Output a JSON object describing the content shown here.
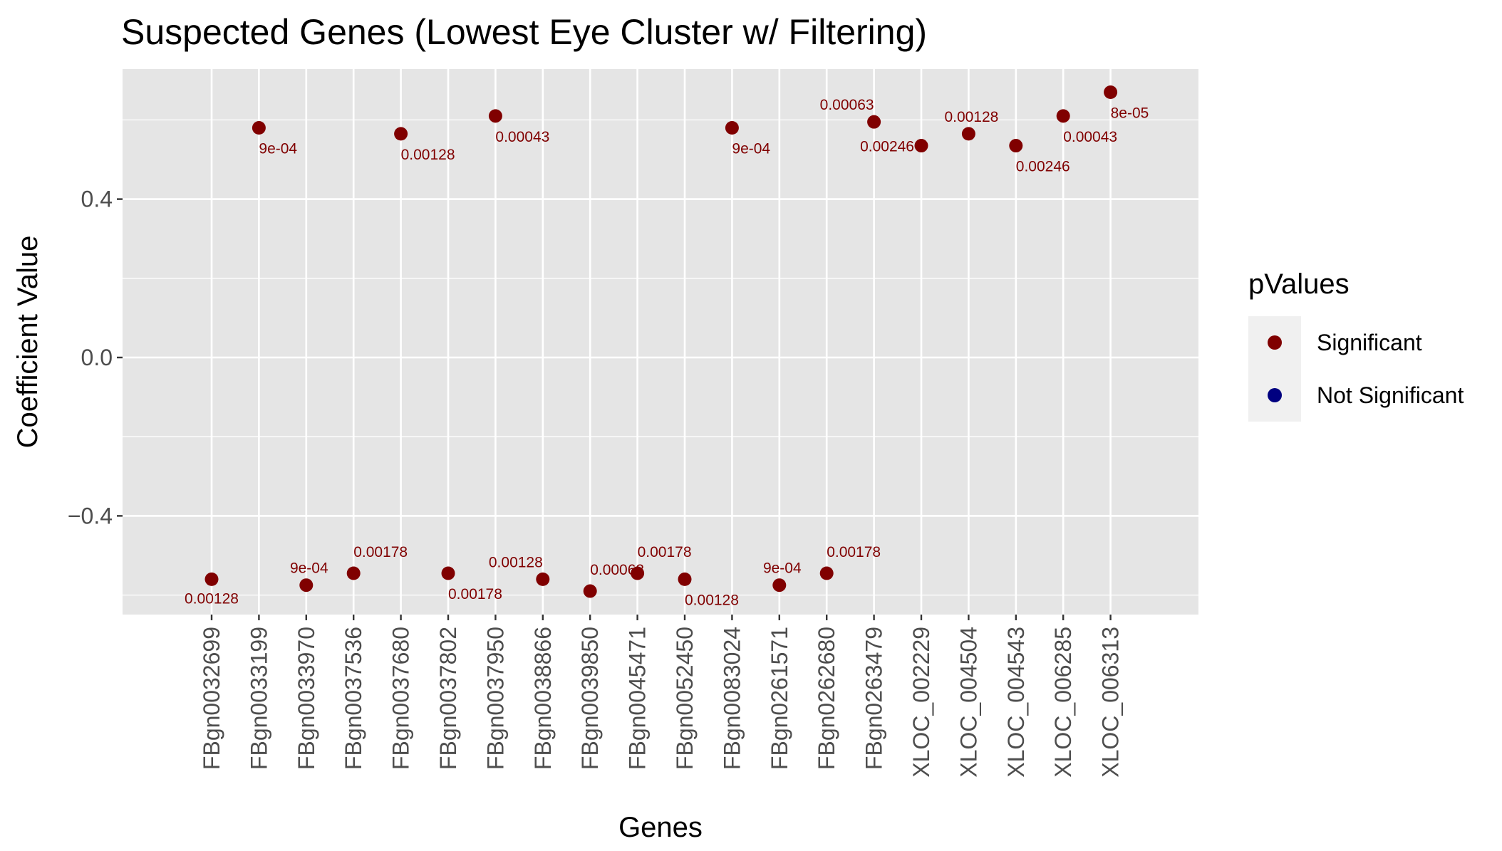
{
  "chart_data": {
    "type": "scatter",
    "title": "Suspected Genes (Lowest Eye Cluster w/ Filtering)",
    "xlabel": "Genes",
    "ylabel": "Coefficient Value",
    "ylim": [
      -0.65,
      0.72
    ],
    "yticks": [
      {
        "value": -0.4,
        "label": "−0.4"
      },
      {
        "value": 0.0,
        "label": "0.0"
      },
      {
        "value": 0.4,
        "label": "0.4"
      }
    ],
    "grid": true,
    "legend_position": "right",
    "legend": {
      "title": "pValues",
      "entries": [
        {
          "label": "Significant",
          "color": "#800000"
        },
        {
          "label": "Not Significant",
          "color": "#000080"
        }
      ]
    },
    "categories": [
      "FBgn0032699",
      "FBgn0033199",
      "FBgn0033970",
      "FBgn0037536",
      "FBgn0037680",
      "FBgn0037802",
      "FBgn0037950",
      "FBgn0038866",
      "FBgn0039850",
      "FBgn0045471",
      "FBgn0052450",
      "FBgn0083024",
      "FBgn0261571",
      "FBgn0262680",
      "FBgn0263479",
      "XLOC_002229",
      "XLOC_004504",
      "XLOC_004543",
      "XLOC_006285",
      "XLOC_006313"
    ],
    "points": [
      {
        "category": "FBgn0032699",
        "y": -0.56,
        "pvalue": "0.00128",
        "group": "Significant",
        "label_pos": "below"
      },
      {
        "category": "FBgn0033199",
        "y": 0.58,
        "pvalue": "9e-04",
        "group": "Significant",
        "label_pos": "below-right"
      },
      {
        "category": "FBgn0033970",
        "y": -0.575,
        "pvalue": "9e-04",
        "group": "Significant",
        "label_pos": "above"
      },
      {
        "category": "FBgn0037536",
        "y": -0.545,
        "pvalue": "0.00178",
        "group": "Significant",
        "label_pos": "above-right"
      },
      {
        "category": "FBgn0037680",
        "y": 0.565,
        "pvalue": "0.00128",
        "group": "Significant",
        "label_pos": "below-right"
      },
      {
        "category": "FBgn0037802",
        "y": -0.545,
        "pvalue": "0.00178",
        "group": "Significant",
        "label_pos": "below-right"
      },
      {
        "category": "FBgn0037950",
        "y": 0.61,
        "pvalue": "0.00043",
        "group": "Significant",
        "label_pos": "below-right"
      },
      {
        "category": "FBgn0038866",
        "y": -0.56,
        "pvalue": "0.00128",
        "group": "Significant",
        "label_pos": "above-left"
      },
      {
        "category": "FBgn0039850",
        "y": -0.59,
        "pvalue": "0.00063",
        "group": "Significant",
        "label_pos": "above-right"
      },
      {
        "category": "FBgn0045471",
        "y": -0.545,
        "pvalue": "0.00178",
        "group": "Significant",
        "label_pos": "above-right"
      },
      {
        "category": "FBgn0052450",
        "y": -0.56,
        "pvalue": "0.00128",
        "group": "Significant",
        "label_pos": "below-right"
      },
      {
        "category": "FBgn0083024",
        "y": 0.58,
        "pvalue": "9e-04",
        "group": "Significant",
        "label_pos": "below-right"
      },
      {
        "category": "FBgn0261571",
        "y": -0.575,
        "pvalue": "9e-04",
        "group": "Significant",
        "label_pos": "above"
      },
      {
        "category": "FBgn0262680",
        "y": -0.545,
        "pvalue": "0.00178",
        "group": "Significant",
        "label_pos": "above-right"
      },
      {
        "category": "FBgn0263479",
        "y": 0.595,
        "pvalue": "0.00063",
        "group": "Significant",
        "label_pos": "above-left"
      },
      {
        "category": "XLOC_002229",
        "y": 0.535,
        "pvalue": "0.00246",
        "group": "Significant",
        "label_pos": "left"
      },
      {
        "category": "XLOC_004504",
        "y": 0.565,
        "pvalue": "0.00128",
        "group": "Significant",
        "label_pos": "above"
      },
      {
        "category": "XLOC_004543",
        "y": 0.535,
        "pvalue": "0.00246",
        "group": "Significant",
        "label_pos": "below-right"
      },
      {
        "category": "XLOC_006285",
        "y": 0.61,
        "pvalue": "0.00043",
        "group": "Significant",
        "label_pos": "below-right"
      },
      {
        "category": "XLOC_006313",
        "y": 0.67,
        "pvalue": "8e-05",
        "group": "Significant",
        "label_pos": "below-right"
      }
    ],
    "colors": {
      "panel": "#e5e5e5",
      "grid": "#ffffff",
      "significant": "#800000",
      "not_significant": "#000080",
      "tick_text": "#4d4d4d",
      "legend_key_bg": "#f0f0f0"
    }
  }
}
